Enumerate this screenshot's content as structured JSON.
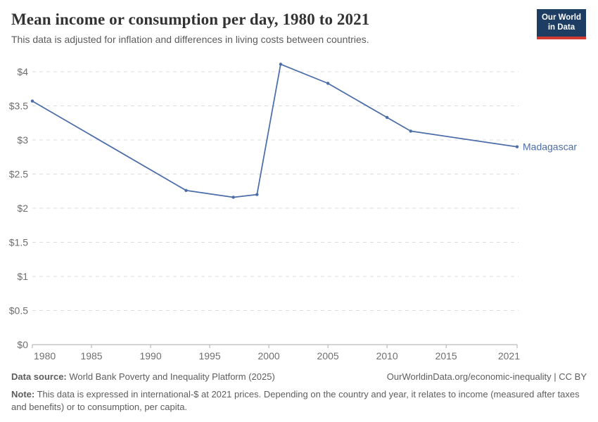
{
  "header": {
    "title": "Mean income or consumption per day, 1980 to 2021",
    "subtitle": "This data is adjusted for inflation and differences in living costs between countries.",
    "logo": {
      "line1": "Our World",
      "line2": "in Data"
    }
  },
  "chart_data": {
    "type": "line",
    "title": "Mean income or consumption per day, 1980 to 2021",
    "xlabel": "",
    "ylabel": "",
    "x_range": [
      1980,
      2021
    ],
    "y_range": [
      0,
      4
    ],
    "grid": true,
    "grid_style": "dashed",
    "x_ticks": [
      1980,
      1985,
      1990,
      1995,
      2000,
      2005,
      2010,
      2015,
      2021
    ],
    "x_tick_labels": [
      "1980",
      "1985",
      "1990",
      "1995",
      "2000",
      "2005",
      "2010",
      "2015",
      "2021"
    ],
    "y_ticks": [
      0,
      0.5,
      1,
      1.5,
      2,
      2.5,
      3,
      3.5,
      4
    ],
    "y_tick_labels": [
      "$0",
      "$0.5",
      "$1",
      "$1.5",
      "$2",
      "$2.5",
      "$3",
      "$3.5",
      "$4"
    ],
    "legend_position": "end-of-line-label",
    "series": [
      {
        "name": "Madagascar",
        "color": "#4c6da8",
        "points": [
          [
            1980,
            3.57
          ],
          [
            1993,
            2.26
          ],
          [
            1997,
            2.16
          ],
          [
            1999,
            2.2
          ],
          [
            2001,
            4.11
          ],
          [
            2005,
            3.83
          ],
          [
            2010,
            3.33
          ],
          [
            2012,
            3.13
          ],
          [
            2021,
            2.9
          ]
        ]
      }
    ]
  },
  "footer": {
    "source_label": "Data source:",
    "source_text": " World Bank Poverty and Inequality Platform (2025)",
    "link": "OurWorldinData.org/economic-inequality",
    "separator": " | ",
    "license": "CC BY",
    "note_label": "Note:",
    "note_text": " This data is expressed in international-$ at 2021 prices. Depending on the country and year, it relates to income (measured after taxes and benefits) or to consumption, per capita."
  }
}
